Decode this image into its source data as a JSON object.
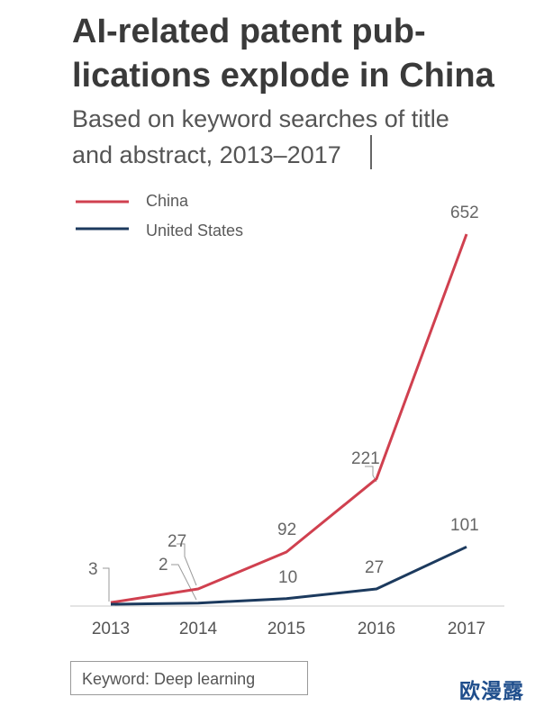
{
  "title_lines": [
    "AI-related patent pub-",
    "lications explode in China"
  ],
  "subtitle_lines": [
    "Based on keyword searches of title",
    "and abstract, 2013–2017"
  ],
  "note": "Keyword: Deep learning",
  "watermark": "欧漫露",
  "colors": {
    "china": "#d0404f",
    "us": "#1c3a5e",
    "axis": "#c8c8c8",
    "leader": "#9a9a9a"
  },
  "chart_data": {
    "type": "line",
    "title": "AI-related patent publications explode in China",
    "subtitle": "Based on keyword searches of title and abstract, 2013–2017",
    "xlabel": "",
    "ylabel": "",
    "categories": [
      "2013",
      "2014",
      "2015",
      "2016",
      "2017"
    ],
    "ylim": [
      0,
      652
    ],
    "grid": false,
    "legend_position": "top-left",
    "series": [
      {
        "name": "China",
        "key": "china",
        "values": [
          3,
          27,
          92,
          221,
          652
        ]
      },
      {
        "name": "United States",
        "key": "us",
        "values": [
          0,
          2,
          10,
          27,
          101
        ]
      }
    ],
    "annotations": [
      "3",
      "27",
      "2",
      "92",
      "10",
      "221",
      "27",
      "652",
      "101"
    ]
  }
}
